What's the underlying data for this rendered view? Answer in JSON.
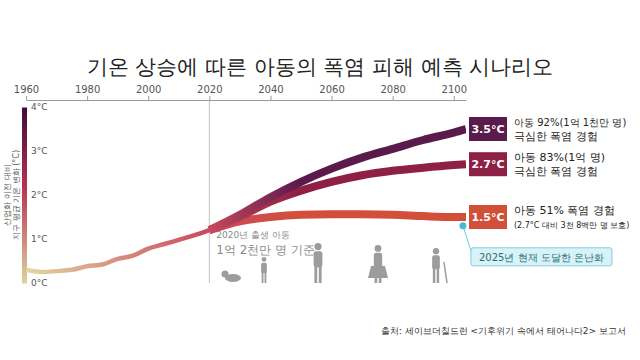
{
  "chart_data": {
    "type": "line",
    "title": "기온 상승에 따른 아동의 폭염 피해 예측 시나리오",
    "y_label": [
      "산업화 이전 대비",
      "지구 평균 기온 변화 (°C)"
    ],
    "x": [
      1960,
      1965,
      1970,
      1975,
      1980,
      1985,
      1990,
      1995,
      2000,
      2005,
      2010,
      2015,
      2020,
      2030,
      2040,
      2050,
      2060,
      2070,
      2080,
      2090,
      2100,
      2104
    ],
    "xlim": [
      1960,
      2104
    ],
    "xticks": [
      1960,
      1980,
      2000,
      2020,
      2040,
      2060,
      2080,
      2100
    ],
    "ylim": [
      0,
      4
    ],
    "yticks": [
      {
        "value": 0,
        "label": "0°C"
      },
      {
        "value": 1,
        "label": "1°C"
      },
      {
        "value": 2,
        "label": "2°C"
      },
      {
        "value": 3,
        "label": "3°C"
      },
      {
        "value": 4,
        "label": "4°C"
      }
    ],
    "series": [
      {
        "color": "#c9485e",
        "values": [
          0.3,
          0.25,
          0.27,
          0.3,
          0.38,
          0.42,
          0.55,
          0.62,
          0.78,
          0.88,
          0.98,
          1.08,
          1.2,
          null,
          null,
          null,
          null,
          null,
          null,
          null,
          null,
          null
        ]
      },
      {
        "name": "3.5°C",
        "color": "#5b1a4c",
        "values": [
          null,
          null,
          null,
          null,
          null,
          null,
          null,
          null,
          null,
          null,
          null,
          null,
          1.2,
          1.55,
          1.95,
          2.3,
          2.6,
          2.85,
          3.05,
          3.25,
          3.42,
          3.5
        ],
        "annotation": [
          "아동 92%(1억 1천만 명)",
          "극심한 폭염 경험"
        ]
      },
      {
        "name": "2.7°C",
        "color": "#8e1f45",
        "values": [
          null,
          null,
          null,
          null,
          null,
          null,
          null,
          null,
          null,
          null,
          null,
          null,
          1.2,
          1.5,
          1.85,
          2.1,
          2.3,
          2.45,
          2.55,
          2.62,
          2.68,
          2.7
        ],
        "annotation": [
          "아동 83%(1억 명)",
          "극심한 폭염 경험"
        ]
      },
      {
        "name": "1.5°C",
        "color": "#d2503a",
        "values": [
          null,
          null,
          null,
          null,
          null,
          null,
          null,
          null,
          null,
          null,
          null,
          null,
          1.2,
          1.4,
          1.5,
          1.55,
          1.56,
          1.56,
          1.55,
          1.52,
          1.5,
          1.5
        ],
        "annotation": [
          "아동 51% 폭염 경험",
          "(2.7°C 대비 3천 8백만 명 보호)"
        ]
      }
    ],
    "notes": [
      "2020년 출생 아동",
      "1억 2천만 명 기준"
    ],
    "current_warming": {
      "label": "2025년 현재 도달한 온난화",
      "x": 2103,
      "y": 1.3
    },
    "source": "출처: 세이브더칠드런 <기후위기 속에서 태어나다2> 보고서"
  }
}
